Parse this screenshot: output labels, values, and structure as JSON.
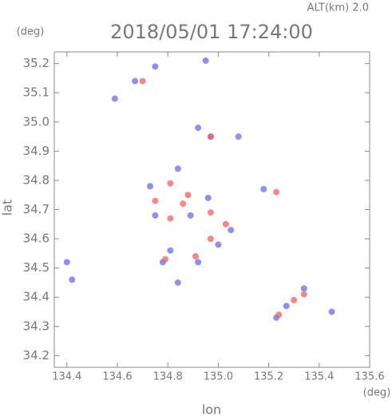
{
  "chart_data": {
    "type": "scatter",
    "title": "2018/05/01 17:24:00",
    "subtitle": "ALT(km) 2.0",
    "x_label": "lon",
    "y_label": "lat",
    "x_unit": "(deg)",
    "y_unit": "(deg)",
    "xlim": [
      134.35,
      135.6
    ],
    "ylim": [
      34.16,
      35.24
    ],
    "xticks": [
      134.4,
      134.6,
      134.8,
      {
        "value": 135,
        "label": "135.0"
      },
      135.2,
      135.4,
      135.6
    ],
    "yticks": [
      34.2,
      34.3,
      34.4,
      34.5,
      34.6,
      34.7,
      34.8,
      34.9,
      {
        "value": 35,
        "label": "35.0"
      },
      35.1,
      35.2
    ],
    "series": [
      {
        "color": "#6a6af0",
        "x": [
          134.67,
          134.75,
          134.59,
          134.95,
          134.92,
          134.97,
          135.08,
          134.84,
          134.73,
          134.96,
          134.89,
          135.05,
          135.0,
          134.81,
          134.78,
          134.92,
          134.84,
          134.4,
          134.42,
          135.27,
          135.34,
          135.23,
          135.45,
          135.18,
          134.75
        ],
        "values": [
          35.14,
          35.19,
          35.08,
          35.21,
          34.98,
          34.95,
          34.95,
          34.84,
          34.78,
          34.74,
          34.68,
          34.63,
          34.58,
          34.56,
          34.52,
          34.52,
          34.45,
          34.52,
          34.46,
          34.37,
          34.43,
          34.33,
          34.35,
          34.77,
          34.68
        ]
      },
      {
        "color": "#f06060",
        "x": [
          134.7,
          134.81,
          134.88,
          134.81,
          134.86,
          134.97,
          135.03,
          134.97,
          134.91,
          134.79,
          135.23,
          135.3,
          135.34,
          135.24,
          134.97,
          134.75
        ],
        "values": [
          35.14,
          34.79,
          34.75,
          34.67,
          34.72,
          34.69,
          34.65,
          34.6,
          34.54,
          34.53,
          34.76,
          34.39,
          34.41,
          34.34,
          34.95,
          34.73
        ]
      }
    ]
  }
}
